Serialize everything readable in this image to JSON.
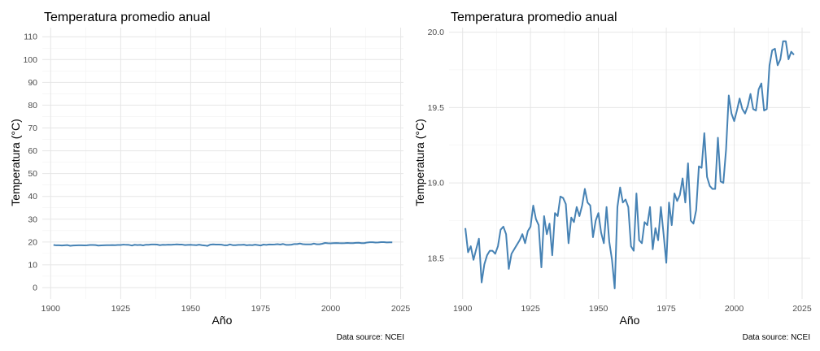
{
  "colors": {
    "line": "#4682b4"
  },
  "chart_data": [
    {
      "type": "line",
      "title": "Temperatura promedio anual",
      "xlabel": "Año",
      "ylabel": "Temperatura (°C)",
      "caption": "Data source: NCEI",
      "xlim": [
        1897,
        2026
      ],
      "ylim": [
        -5,
        114
      ],
      "xticks": [
        1900,
        1925,
        1950,
        1975,
        2000,
        2025
      ],
      "yticks": [
        0,
        10,
        20,
        30,
        40,
        50,
        60,
        70,
        80,
        90,
        100,
        110
      ],
      "series_ref": "temperature"
    },
    {
      "type": "line",
      "title": "Temperatura promedio anual",
      "xlabel": "Año",
      "ylabel": "Temperatura (°C)",
      "caption": "Data source: NCEI",
      "xlim": [
        1895,
        2028
      ],
      "ylim": [
        18.23,
        20.03
      ],
      "xticks": [
        1900,
        1925,
        1950,
        1975,
        2000,
        2025
      ],
      "yticks": [
        "18.5",
        "19.0",
        "19.5",
        "20.0"
      ],
      "series_ref": "temperature"
    }
  ],
  "temperature": {
    "years": [
      1901,
      1902,
      1903,
      1904,
      1905,
      1906,
      1907,
      1908,
      1909,
      1910,
      1911,
      1912,
      1913,
      1914,
      1915,
      1916,
      1917,
      1918,
      1919,
      1920,
      1921,
      1922,
      1923,
      1924,
      1925,
      1926,
      1927,
      1928,
      1929,
      1930,
      1931,
      1932,
      1933,
      1934,
      1935,
      1936,
      1937,
      1938,
      1939,
      1940,
      1941,
      1942,
      1943,
      1944,
      1945,
      1946,
      1947,
      1948,
      1949,
      1950,
      1951,
      1952,
      1953,
      1954,
      1955,
      1956,
      1957,
      1958,
      1959,
      1960,
      1961,
      1962,
      1963,
      1964,
      1965,
      1966,
      1967,
      1968,
      1969,
      1970,
      1971,
      1972,
      1973,
      1974,
      1975,
      1976,
      1977,
      1978,
      1979,
      1980,
      1981,
      1982,
      1983,
      1984,
      1985,
      1986,
      1987,
      1988,
      1989,
      1990,
      1991,
      1992,
      1993,
      1994,
      1995,
      1996,
      1997,
      1998,
      1999,
      2000,
      2001,
      2002,
      2003,
      2004,
      2005,
      2006,
      2007,
      2008,
      2009,
      2010,
      2011,
      2012,
      2013,
      2014,
      2015,
      2016,
      2017,
      2018,
      2019,
      2020,
      2021,
      2022
    ],
    "values": [
      18.7,
      18.54,
      18.58,
      18.49,
      18.56,
      18.63,
      18.34,
      18.46,
      18.52,
      18.55,
      18.55,
      18.53,
      18.58,
      18.69,
      18.71,
      18.66,
      18.43,
      18.53,
      18.56,
      18.59,
      18.62,
      18.66,
      18.6,
      18.68,
      18.71,
      18.85,
      18.76,
      18.72,
      18.44,
      18.78,
      18.66,
      18.73,
      18.52,
      18.8,
      18.78,
      18.91,
      18.9,
      18.86,
      18.6,
      18.77,
      18.74,
      18.84,
      18.78,
      18.85,
      18.96,
      18.87,
      18.85,
      18.64,
      18.75,
      18.8,
      18.67,
      18.6,
      18.84,
      18.61,
      18.49,
      18.3,
      18.84,
      18.97,
      18.87,
      18.89,
      18.84,
      18.58,
      18.55,
      18.93,
      18.62,
      18.6,
      18.74,
      18.72,
      18.84,
      18.56,
      18.7,
      18.62,
      18.84,
      18.66,
      18.47,
      18.87,
      18.72,
      18.93,
      18.88,
      18.92,
      19.03,
      18.87,
      19.13,
      18.75,
      18.73,
      18.82,
      19.11,
      19.1,
      19.33,
      19.04,
      18.98,
      18.96,
      18.96,
      19.3,
      19.01,
      19.0,
      19.22,
      19.58,
      19.46,
      19.41,
      19.48,
      19.56,
      19.49,
      19.46,
      19.51,
      19.59,
      19.49,
      19.48,
      19.62,
      19.66,
      19.48,
      19.49,
      19.78,
      19.88,
      19.89,
      19.78,
      19.82,
      19.94,
      19.94,
      19.82,
      19.87,
      19.85
    ]
  }
}
